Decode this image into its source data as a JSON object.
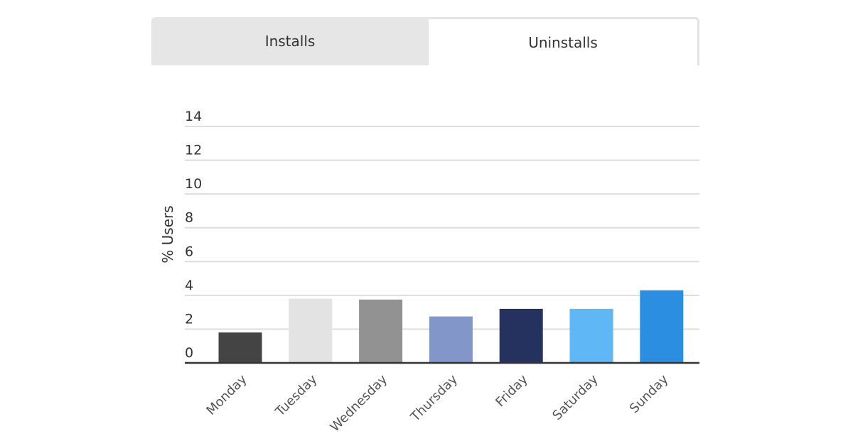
{
  "tabs": {
    "installs_label": "Installs",
    "uninstalls_label": "Uninstalls",
    "active": "Uninstalls"
  },
  "chart_data": {
    "type": "bar",
    "title": "",
    "xlabel": "",
    "ylabel": "% Users",
    "ylim": [
      0,
      14
    ],
    "yticks": [
      0,
      2,
      4,
      6,
      8,
      10,
      12,
      14
    ],
    "grid": true,
    "categories": [
      "Monday",
      "Tuesday",
      "Wednesday",
      "Thursday",
      "Friday",
      "Saturday",
      "Sunday"
    ],
    "values": [
      1.8,
      3.8,
      3.75,
      2.75,
      3.2,
      3.2,
      4.3
    ],
    "colors": [
      "#444444",
      "#e3e3e3",
      "#929292",
      "#8396c9",
      "#253260",
      "#5fb7f5",
      "#2c8ee0"
    ]
  }
}
